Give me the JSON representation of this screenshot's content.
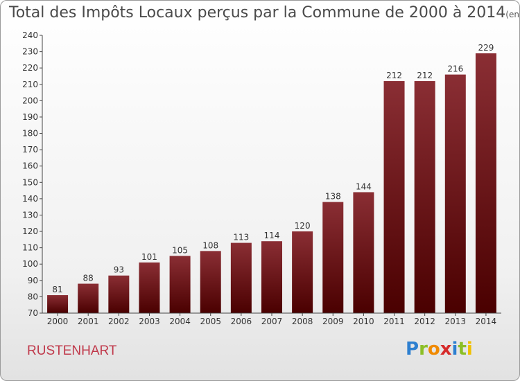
{
  "title": "Total des Impôts Locaux perçus par la Commune de 2000 à 2014",
  "title_unit": "(en milliers d'€)",
  "commune": "RUSTENHART",
  "logo_letters": [
    "P",
    "r",
    "o",
    "x",
    "i",
    "t",
    "i"
  ],
  "colors": {
    "bar_top": "#8a2e34",
    "bar_bottom": "#4a0000",
    "commune": "#c0394b"
  },
  "chart_data": {
    "type": "bar",
    "title": "Total des Impôts Locaux perçus par la Commune de 2000 à 2014",
    "categories": [
      "2000",
      "2001",
      "2002",
      "2003",
      "2004",
      "2005",
      "2006",
      "2007",
      "2008",
      "2009",
      "2010",
      "2011",
      "2012",
      "2013",
      "2014"
    ],
    "values": [
      81,
      88,
      93,
      101,
      105,
      108,
      113,
      114,
      120,
      138,
      144,
      212,
      212,
      216,
      229
    ],
    "data_labels": [
      "81",
      "88",
      "93",
      "101",
      "105",
      "108",
      "113",
      "114",
      "120",
      "138",
      "144",
      "212",
      "212",
      "216",
      "229"
    ],
    "xlabel": "",
    "ylabel": "",
    "ylim": [
      70,
      240
    ],
    "yticks": [
      70,
      80,
      90,
      100,
      110,
      120,
      130,
      140,
      150,
      160,
      170,
      180,
      190,
      200,
      210,
      220,
      230,
      240
    ],
    "grid": false,
    "legend": "none"
  }
}
